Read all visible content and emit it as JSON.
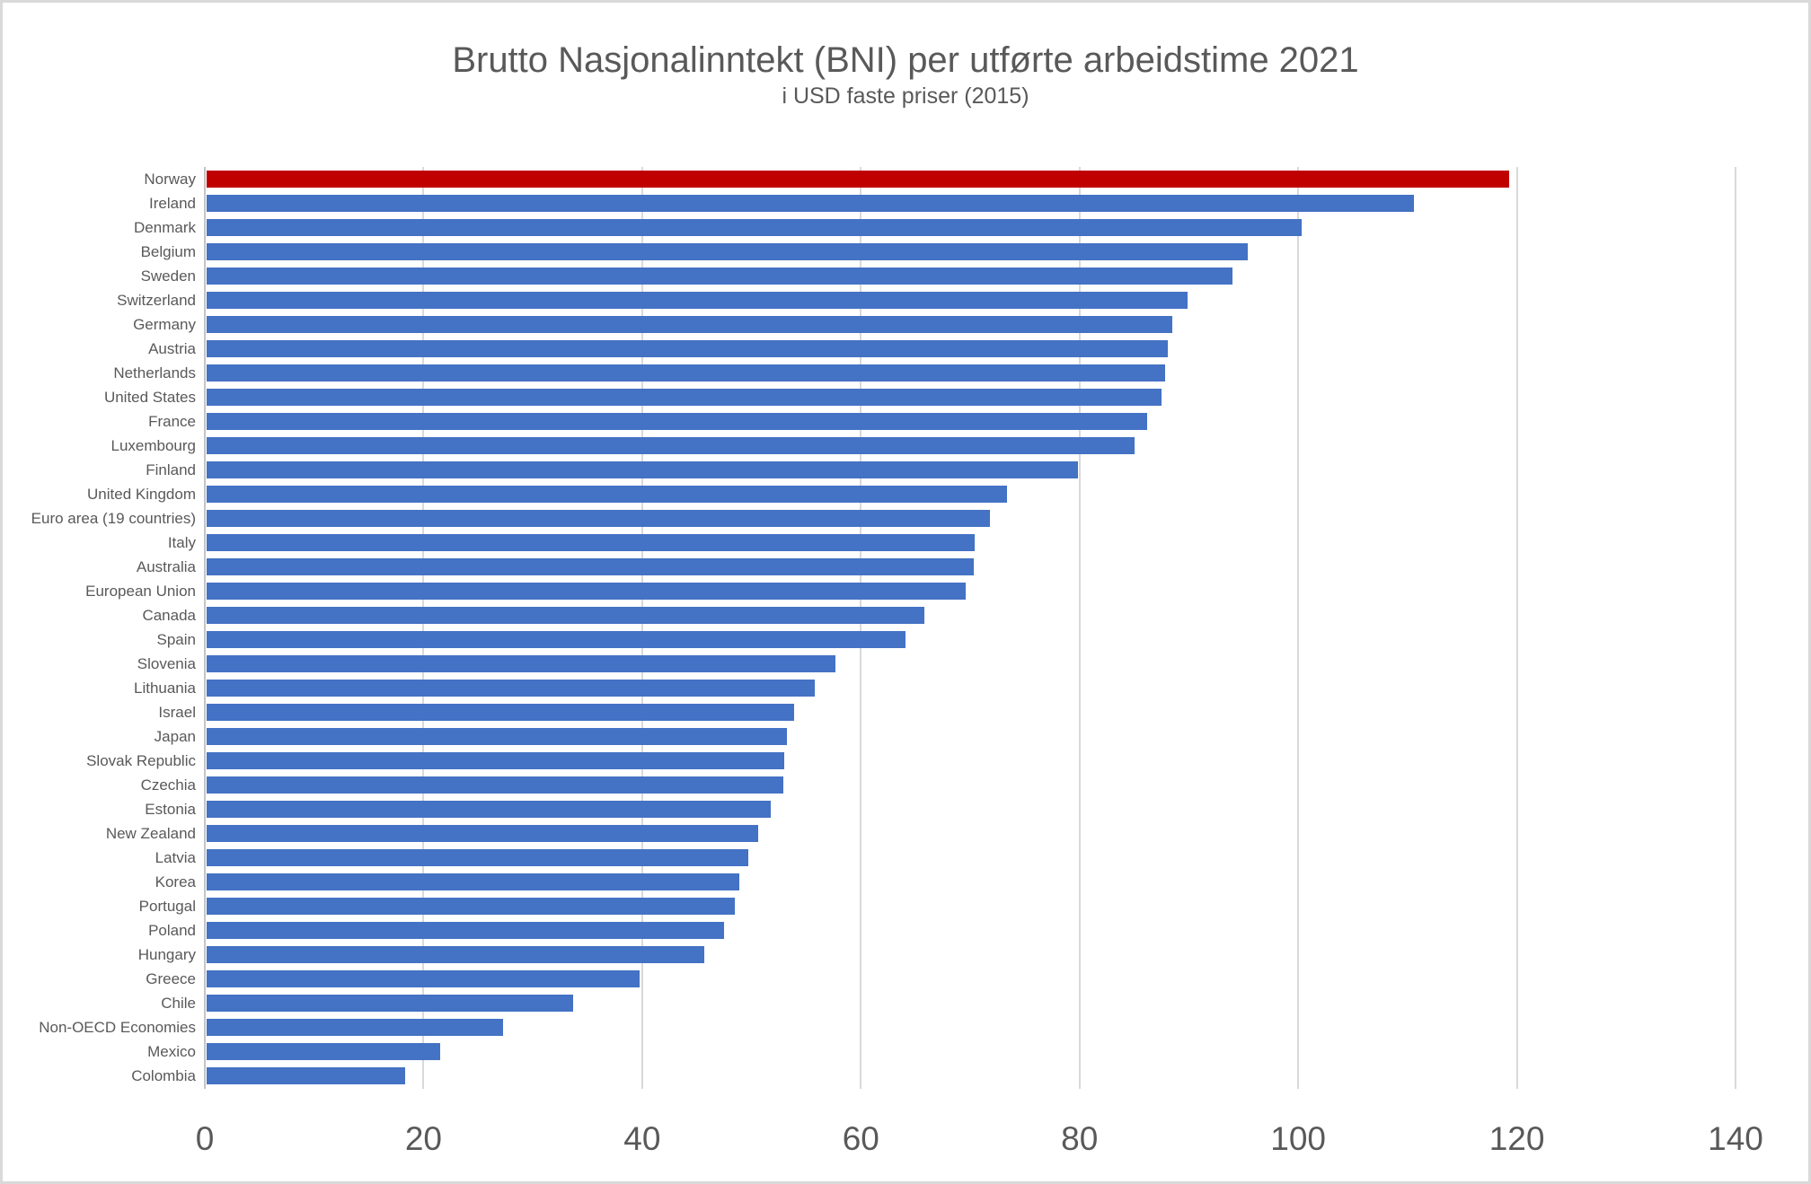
{
  "title": "Brutto Nasjonalinntekt (BNI) per utførte arbeidstime 2021",
  "subtitle": "i USD faste priser (2015)",
  "chart_data": {
    "type": "bar",
    "orientation": "horizontal",
    "title": "Brutto Nasjonalinntekt (BNI) per utførte arbeidstime 2021",
    "subtitle": "i USD faste priser (2015)",
    "xlabel": "",
    "ylabel": "",
    "xlim": [
      0,
      140
    ],
    "xticks": [
      0,
      20,
      40,
      60,
      80,
      100,
      120,
      140
    ],
    "grid": true,
    "categories": [
      "Norway",
      "Ireland",
      "Denmark",
      "Belgium",
      "Sweden",
      "Switzerland",
      "Germany",
      "Austria",
      "Netherlands",
      "United States",
      "France",
      "Luxembourg",
      "Finland",
      "United Kingdom",
      "Euro area (19 countries)",
      "Italy",
      "Australia",
      "European Union",
      "Canada",
      "Spain",
      "Slovenia",
      "Lithuania",
      "Israel",
      "Japan",
      "Slovak Republic",
      "Czechia",
      "Estonia",
      "New Zealand",
      "Latvia",
      "Korea",
      "Portugal",
      "Poland",
      "Hungary",
      "Greece",
      "Chile",
      "Non-OECD Economies",
      "Mexico",
      "Colombia"
    ],
    "values": [
      119.3,
      110.6,
      100.3,
      95.4,
      94.0,
      89.9,
      88.5,
      88.1,
      87.8,
      87.5,
      86.2,
      85.0,
      79.9,
      73.4,
      71.8,
      70.4,
      70.3,
      69.6,
      65.8,
      64.1,
      57.7,
      55.8,
      53.9,
      53.2,
      53.0,
      52.9,
      51.8,
      50.6,
      49.7,
      48.9,
      48.5,
      47.5,
      45.7,
      39.8,
      33.7,
      27.3,
      21.5,
      18.3
    ],
    "highlight_category": "Norway",
    "colors": {
      "bar": "#4472C4",
      "highlight_bar": "#C00000",
      "gridline": "#D9D9D9",
      "axis_line": "#C4C4C4",
      "text": "#595959",
      "figure_border": "#D9D9D9",
      "background": "#FFFFFF"
    }
  }
}
